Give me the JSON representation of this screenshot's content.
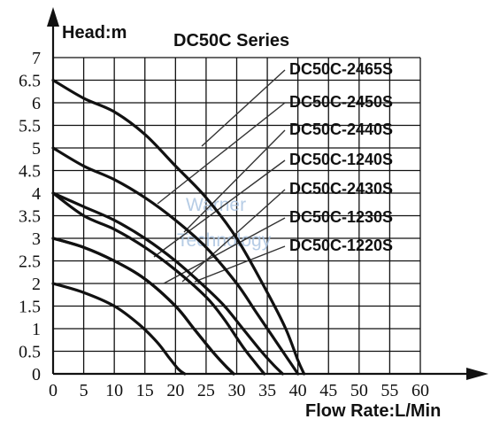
{
  "chart_data": {
    "type": "line",
    "title": "DC50C Series",
    "xlabel": "Flow Rate:L/Min",
    "ylabel": "Head:m",
    "xlim": [
      0,
      60
    ],
    "ylim": [
      0,
      7
    ],
    "x_ticks": [
      "0",
      "5",
      "10",
      "15",
      "20",
      "25",
      "30",
      "35",
      "40",
      "45",
      "50",
      "55",
      "60"
    ],
    "y_ticks": [
      "0",
      "0.5",
      "1",
      "1.5",
      "2",
      "2.5",
      "3",
      "3.5",
      "4",
      "4.5",
      "5",
      "5.5",
      "6",
      "6.5",
      "7"
    ],
    "grid": true,
    "legend_position": "right",
    "watermark": [
      "Warner",
      "Technology"
    ],
    "colors": {
      "highlight": "#e8141e",
      "default": "#111111"
    },
    "series": [
      {
        "name": "DC50C-2465S",
        "x": [
          0,
          5,
          10,
          15,
          20,
          25,
          30,
          35,
          38,
          40,
          41
        ],
        "y": [
          6.5,
          6.1,
          5.8,
          5.3,
          4.6,
          3.9,
          3.0,
          1.8,
          1.0,
          0.3,
          0
        ]
      },
      {
        "name": "DC50C-2450S",
        "x": [
          0,
          5,
          10,
          15,
          20,
          25,
          30,
          33,
          36,
          38,
          40
        ],
        "y": [
          5.0,
          4.6,
          4.3,
          3.9,
          3.4,
          2.8,
          2.0,
          1.4,
          0.8,
          0.4,
          0
        ]
      },
      {
        "name": "DC50C-2440S",
        "x": [
          0,
          5,
          10,
          15,
          20,
          25,
          28,
          31,
          34,
          36,
          37.5
        ],
        "y": [
          4.0,
          3.7,
          3.4,
          3.0,
          2.5,
          1.9,
          1.5,
          1.0,
          0.5,
          0.2,
          0
        ]
      },
      {
        "name": "DC50C-1240S",
        "x": [
          0,
          5,
          10,
          15,
          20,
          25,
          28,
          31,
          33,
          34.5
        ],
        "y": [
          4.0,
          3.5,
          3.2,
          2.8,
          2.3,
          1.7,
          1.2,
          0.6,
          0.25,
          0
        ]
      },
      {
        "name": "DC50C-2430S",
        "x": [
          0,
          5,
          10,
          15,
          20,
          23,
          26,
          28,
          29.5
        ],
        "y": [
          3.0,
          2.8,
          2.5,
          2.1,
          1.5,
          1.0,
          0.5,
          0.2,
          0
        ]
      },
      {
        "name": "DC50C-1230S",
        "x": [
          0,
          5,
          10,
          15,
          20,
          23,
          26,
          28,
          29.5
        ],
        "y": [
          3.0,
          2.8,
          2.5,
          2.1,
          1.5,
          1.0,
          0.5,
          0.2,
          0
        ]
      },
      {
        "name": "DC50C-1220S",
        "x": [
          0,
          5,
          10,
          14,
          17,
          19,
          20.5,
          21.5
        ],
        "y": [
          2.0,
          1.8,
          1.5,
          1.1,
          0.7,
          0.35,
          0.1,
          0
        ]
      }
    ],
    "highlighted_series": "DC50C-2465S"
  }
}
